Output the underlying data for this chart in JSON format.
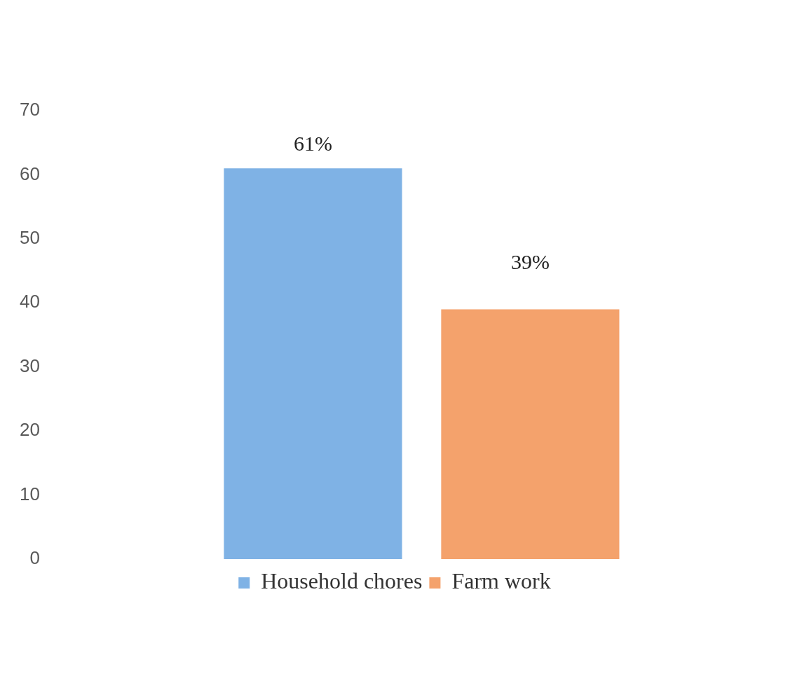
{
  "chart_data": {
    "type": "bar",
    "categories": [
      null
    ],
    "series": [
      {
        "name": "Household chores",
        "color": "#7fb2e5",
        "values": [
          61
        ],
        "value_labels": [
          "61%"
        ]
      },
      {
        "name": "Farm work",
        "color": "#f4a26c",
        "values": [
          39
        ],
        "value_labels": [
          "39%"
        ]
      }
    ],
    "ylim": [
      0,
      70
    ],
    "yticks": [
      0,
      10,
      20,
      30,
      40,
      50,
      60,
      70
    ],
    "grid": false,
    "legend": "bottom"
  }
}
